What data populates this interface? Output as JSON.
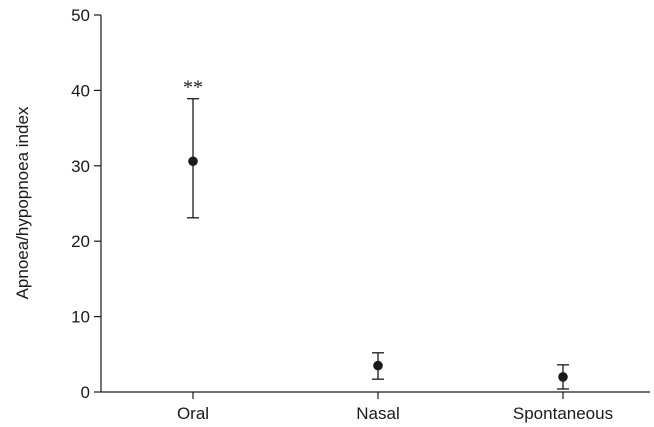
{
  "chart_data": {
    "type": "scatter",
    "categories": [
      "Oral",
      "Nasal",
      "Spontaneous"
    ],
    "values": [
      30.6,
      3.5,
      2.0
    ],
    "error_low": [
      23.1,
      1.7,
      0.4
    ],
    "error_high": [
      38.9,
      5.2,
      3.6
    ],
    "annotations": [
      {
        "category": "Oral",
        "text": "**"
      }
    ],
    "xlabel": "",
    "ylabel": "Apnoea/hypopnoea index",
    "ylim": [
      0,
      50
    ],
    "yticks": [
      0,
      10,
      20,
      30,
      40,
      50
    ],
    "grid": false,
    "color": "#1a1a1a"
  }
}
